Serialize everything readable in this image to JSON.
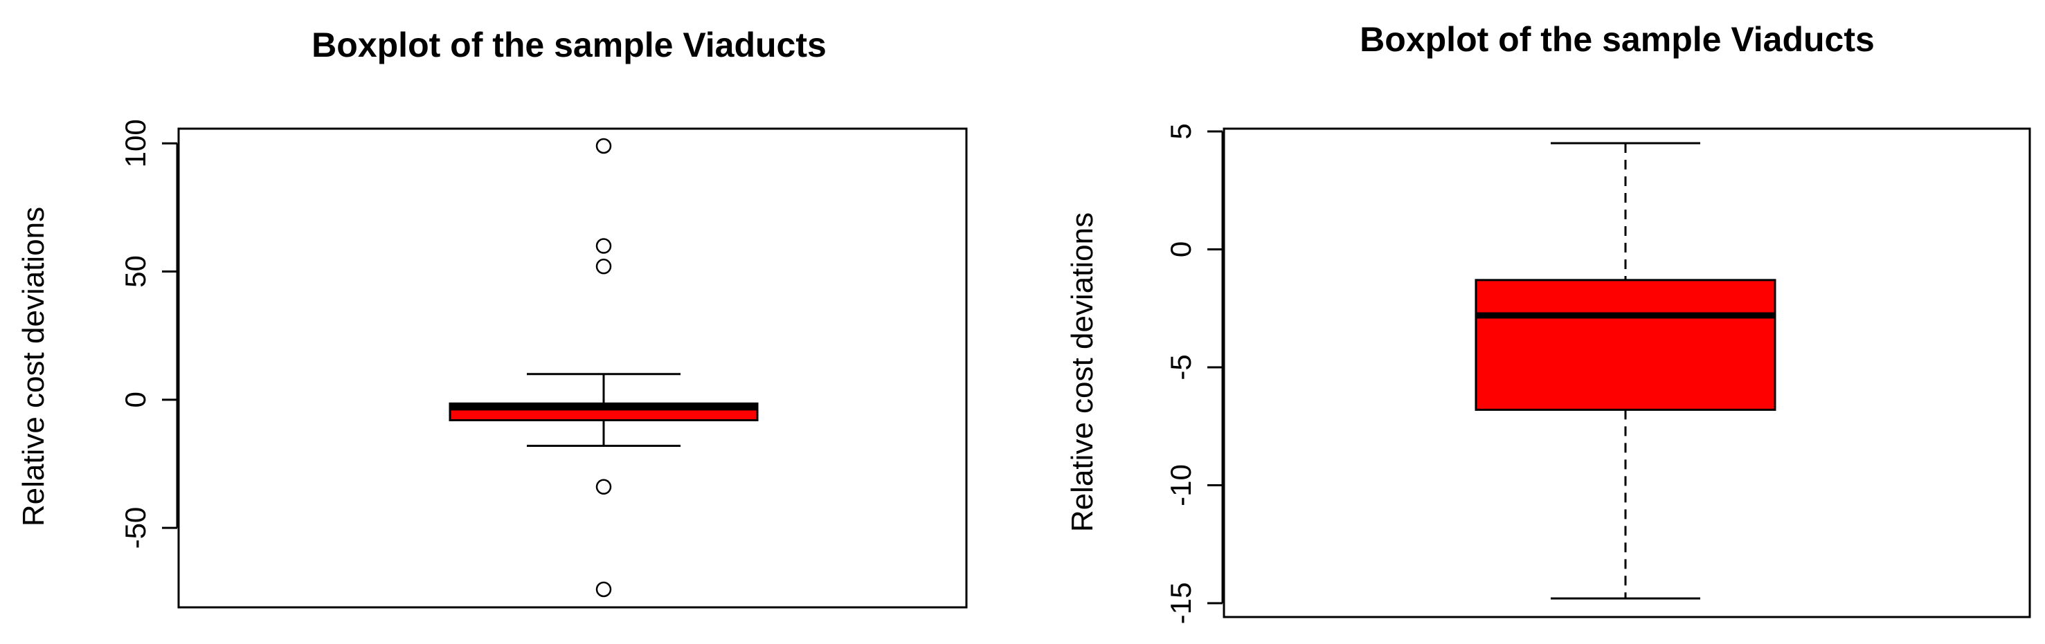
{
  "chart_data": [
    {
      "type": "boxplot",
      "title": "Boxplot of the sample Viaducts",
      "ylabel": "Relative cost deviations",
      "ylim": [
        -80,
        105
      ],
      "yticks": [
        100,
        50,
        0,
        -50
      ],
      "whisker_style": "solid",
      "box_color": "#ff0000",
      "median_color": "#000000",
      "box": {
        "whisker_low": -18,
        "q1": -8,
        "median": -3,
        "q3": -1.5,
        "whisker_high": 10
      },
      "outliers": [
        99,
        60,
        52,
        -34,
        -74
      ]
    },
    {
      "type": "boxplot",
      "title": "Boxplot of the sample Viaducts",
      "ylabel": "Relative cost deviations",
      "ylim": [
        -15.8,
        5.3
      ],
      "yticks": [
        5,
        0,
        -5,
        -10,
        -15
      ],
      "whisker_style": "dashed",
      "box_color": "#ff0000",
      "median_color": "#000000",
      "box": {
        "whisker_low": -14.8,
        "q1": -6.8,
        "median": -2.8,
        "q3": -1.3,
        "whisker_high": 4.5
      },
      "outliers": []
    }
  ]
}
